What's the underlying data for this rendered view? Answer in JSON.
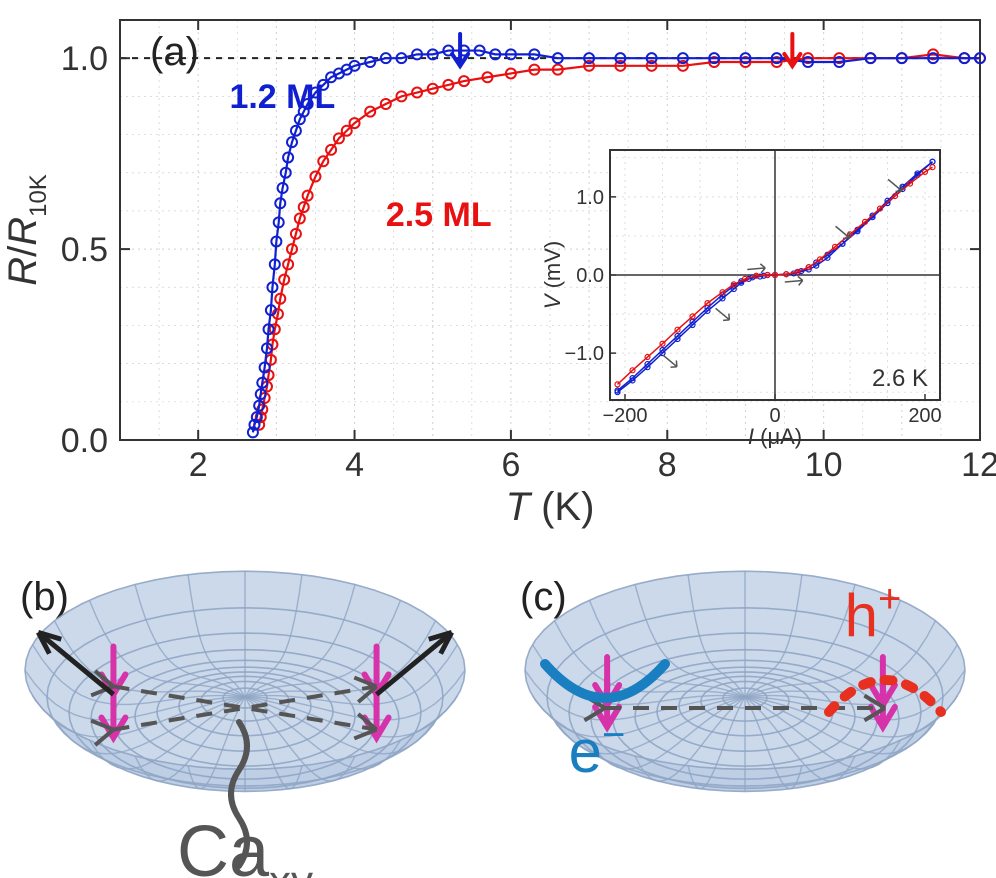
{
  "panel_a": {
    "label": "(a)",
    "label_fontsize": 40,
    "label_color": "#222222",
    "y_axis_label_parts": [
      "R",
      "/",
      "R",
      "10K"
    ],
    "y_axis_fontsize": 40,
    "x_axis_label": "T (K)",
    "x_axis_fontsize": 40,
    "axis_color": "#333333",
    "grid_color": "#d0d0d0",
    "background_color": "#ffffff",
    "xlim": [
      1,
      12
    ],
    "ylim": [
      0,
      1.1
    ],
    "xticks": [
      2,
      4,
      6,
      8,
      10,
      12
    ],
    "yticks": [
      0.0,
      0.5,
      1.0
    ],
    "ytick_labels": [
      "0.0",
      "0.5",
      "1.0"
    ],
    "tick_fontsize": 34,
    "baseline_y": 1.0,
    "baseline_dash": "6,6",
    "baseline_color": "#222222",
    "arrow_blue_x": 5.35,
    "arrow_red_x": 9.6,
    "series_blue": {
      "name": "1.2 ML",
      "color": "#1020d0",
      "label_pos": [
        2.4,
        0.87
      ],
      "label_fontsize": 34,
      "marker_size": 5,
      "points": [
        [
          2.7,
          0.02
        ],
        [
          2.72,
          0.04
        ],
        [
          2.75,
          0.06
        ],
        [
          2.78,
          0.09
        ],
        [
          2.8,
          0.12
        ],
        [
          2.82,
          0.15
        ],
        [
          2.85,
          0.19
        ],
        [
          2.88,
          0.24
        ],
        [
          2.9,
          0.29
        ],
        [
          2.93,
          0.34
        ],
        [
          2.95,
          0.4
        ],
        [
          2.98,
          0.46
        ],
        [
          3.0,
          0.52
        ],
        [
          3.03,
          0.57
        ],
        [
          3.05,
          0.62
        ],
        [
          3.08,
          0.66
        ],
        [
          3.12,
          0.7
        ],
        [
          3.15,
          0.74
        ],
        [
          3.2,
          0.78
        ],
        [
          3.25,
          0.81
        ],
        [
          3.3,
          0.84
        ],
        [
          3.35,
          0.86
        ],
        [
          3.4,
          0.88
        ],
        [
          3.5,
          0.91
        ],
        [
          3.6,
          0.93
        ],
        [
          3.7,
          0.95
        ],
        [
          3.8,
          0.96
        ],
        [
          3.9,
          0.97
        ],
        [
          4.0,
          0.98
        ],
        [
          4.2,
          0.99
        ],
        [
          4.4,
          1.0
        ],
        [
          4.6,
          1.0
        ],
        [
          4.8,
          1.01
        ],
        [
          5.0,
          1.01
        ],
        [
          5.2,
          1.02
        ],
        [
          5.4,
          1.02
        ],
        [
          5.6,
          1.02
        ],
        [
          5.8,
          1.01
        ],
        [
          6.0,
          1.01
        ],
        [
          6.3,
          1.01
        ],
        [
          6.6,
          1.0
        ],
        [
          7.0,
          1.0
        ],
        [
          7.4,
          1.0
        ],
        [
          7.8,
          1.0
        ],
        [
          8.2,
          1.0
        ],
        [
          8.6,
          1.0
        ],
        [
          9.0,
          1.0
        ],
        [
          9.4,
          1.0
        ],
        [
          9.8,
          0.99
        ],
        [
          10.2,
          0.99
        ],
        [
          10.6,
          1.0
        ],
        [
          11.0,
          1.0
        ],
        [
          11.4,
          1.0
        ],
        [
          11.8,
          1.0
        ],
        [
          12.0,
          1.0
        ]
      ]
    },
    "series_red": {
      "name": "2.5 ML",
      "color": "#e81010",
      "label_pos": [
        4.4,
        0.56
      ],
      "label_fontsize": 34,
      "marker_size": 5,
      "points": [
        [
          2.78,
          0.04
        ],
        [
          2.8,
          0.06
        ],
        [
          2.82,
          0.08
        ],
        [
          2.85,
          0.11
        ],
        [
          2.88,
          0.14
        ],
        [
          2.9,
          0.17
        ],
        [
          2.93,
          0.21
        ],
        [
          2.95,
          0.25
        ],
        [
          2.98,
          0.29
        ],
        [
          3.02,
          0.33
        ],
        [
          3.05,
          0.37
        ],
        [
          3.1,
          0.42
        ],
        [
          3.15,
          0.46
        ],
        [
          3.2,
          0.5
        ],
        [
          3.25,
          0.54
        ],
        [
          3.3,
          0.58
        ],
        [
          3.35,
          0.61
        ],
        [
          3.4,
          0.64
        ],
        [
          3.5,
          0.69
        ],
        [
          3.6,
          0.73
        ],
        [
          3.7,
          0.76
        ],
        [
          3.8,
          0.79
        ],
        [
          3.9,
          0.81
        ],
        [
          4.0,
          0.83
        ],
        [
          4.2,
          0.86
        ],
        [
          4.4,
          0.88
        ],
        [
          4.6,
          0.9
        ],
        [
          4.8,
          0.91
        ],
        [
          5.0,
          0.92
        ],
        [
          5.2,
          0.93
        ],
        [
          5.4,
          0.94
        ],
        [
          5.7,
          0.95
        ],
        [
          6.0,
          0.96
        ],
        [
          6.3,
          0.97
        ],
        [
          6.6,
          0.97
        ],
        [
          7.0,
          0.98
        ],
        [
          7.4,
          0.98
        ],
        [
          7.8,
          0.98
        ],
        [
          8.2,
          0.98
        ],
        [
          8.6,
          0.99
        ],
        [
          9.0,
          0.99
        ],
        [
          9.4,
          0.99
        ],
        [
          9.8,
          1.0
        ],
        [
          10.2,
          1.0
        ],
        [
          10.6,
          1.0
        ],
        [
          11.0,
          1.0
        ],
        [
          11.4,
          1.01
        ],
        [
          11.8,
          1.0
        ],
        [
          12.0,
          1.0
        ]
      ]
    },
    "inset": {
      "x_label": "I (μA)",
      "y_label": "V (mV)",
      "label_fontsize": 22,
      "annotation": "2.6 K",
      "annotation_fontsize": 24,
      "xlim": [
        -220,
        220
      ],
      "ylim": [
        -1.6,
        1.6
      ],
      "xticks": [
        -200,
        0,
        200
      ],
      "yticks": [
        -1.0,
        0.0,
        1.0
      ],
      "ytick_labels": [
        "−1.0",
        "0.0",
        "1.0"
      ],
      "tick_fontsize": 20,
      "grid_color": "#d0d0d0",
      "border_color": "#333333",
      "series_blue_up": {
        "color": "#1020d0",
        "points": [
          [
            -210,
            -1.5
          ],
          [
            -190,
            -1.35
          ],
          [
            -170,
            -1.18
          ],
          [
            -150,
            -1.0
          ],
          [
            -130,
            -0.82
          ],
          [
            -110,
            -0.64
          ],
          [
            -90,
            -0.46
          ],
          [
            -70,
            -0.3
          ],
          [
            -55,
            -0.18
          ],
          [
            -45,
            -0.1
          ],
          [
            -35,
            -0.05
          ],
          [
            -20,
            -0.02
          ],
          [
            -10,
            0.0
          ],
          [
            0,
            0.0
          ],
          [
            15,
            0.01
          ],
          [
            30,
            0.03
          ],
          [
            45,
            0.07
          ],
          [
            55,
            0.12
          ],
          [
            70,
            0.22
          ],
          [
            90,
            0.4
          ],
          [
            110,
            0.58
          ],
          [
            130,
            0.76
          ],
          [
            150,
            0.95
          ],
          [
            170,
            1.13
          ],
          [
            190,
            1.3
          ],
          [
            210,
            1.45
          ]
        ]
      },
      "series_blue_down": {
        "color": "#1020d0",
        "points": [
          [
            210,
            1.45
          ],
          [
            190,
            1.28
          ],
          [
            170,
            1.1
          ],
          [
            150,
            0.92
          ],
          [
            130,
            0.74
          ],
          [
            110,
            0.56
          ],
          [
            90,
            0.4
          ],
          [
            70,
            0.26
          ],
          [
            55,
            0.16
          ],
          [
            45,
            0.1
          ],
          [
            35,
            0.05
          ],
          [
            25,
            0.02
          ],
          [
            0,
            0.0
          ],
          [
            -15,
            -0.01
          ],
          [
            -30,
            -0.03
          ],
          [
            -45,
            -0.08
          ],
          [
            -55,
            -0.14
          ],
          [
            -70,
            -0.25
          ],
          [
            -90,
            -0.42
          ],
          [
            -110,
            -0.6
          ],
          [
            -130,
            -0.78
          ],
          [
            -150,
            -0.96
          ],
          [
            -170,
            -1.14
          ],
          [
            -190,
            -1.32
          ],
          [
            -210,
            -1.48
          ]
        ]
      },
      "series_red": {
        "color": "#e81010",
        "points": [
          [
            -210,
            -1.4
          ],
          [
            -190,
            -1.22
          ],
          [
            -170,
            -1.05
          ],
          [
            -150,
            -0.88
          ],
          [
            -130,
            -0.7
          ],
          [
            -110,
            -0.53
          ],
          [
            -90,
            -0.36
          ],
          [
            -70,
            -0.22
          ],
          [
            -55,
            -0.12
          ],
          [
            -40,
            -0.05
          ],
          [
            -25,
            -0.01
          ],
          [
            -10,
            0.0
          ],
          [
            0,
            0.0
          ],
          [
            15,
            0.01
          ],
          [
            30,
            0.04
          ],
          [
            45,
            0.1
          ],
          [
            60,
            0.2
          ],
          [
            80,
            0.36
          ],
          [
            100,
            0.52
          ],
          [
            120,
            0.68
          ],
          [
            140,
            0.85
          ],
          [
            160,
            1.01
          ],
          [
            180,
            1.17
          ],
          [
            200,
            1.32
          ],
          [
            210,
            1.38
          ]
        ]
      }
    }
  },
  "panel_b": {
    "label": "(b)",
    "label_fontsize": 40,
    "label_color": "#222222",
    "annotation_main": "Ca",
    "annotation_sub": "xy",
    "annotation_color": "#555555",
    "annotation_fontsize": 40,
    "surface_fill": "#b7c9e3",
    "surface_edge": "#8fa5c4",
    "arrow_spin_color": "#d633aa",
    "arrow_black_color": "#222222",
    "dashed_color": "#555555"
  },
  "panel_c": {
    "label": "(c)",
    "label_fontsize": 40,
    "label_color": "#222222",
    "electron_label": "e",
    "electron_sup": "−",
    "electron_color": "#1a7fc0",
    "hole_label": "h",
    "hole_sup": "+",
    "hole_color": "#e83020",
    "arrow_spin_color": "#d633aa",
    "dashed_color": "#555555",
    "surface_fill": "#b7c9e3",
    "surface_edge": "#8fa5c4"
  }
}
